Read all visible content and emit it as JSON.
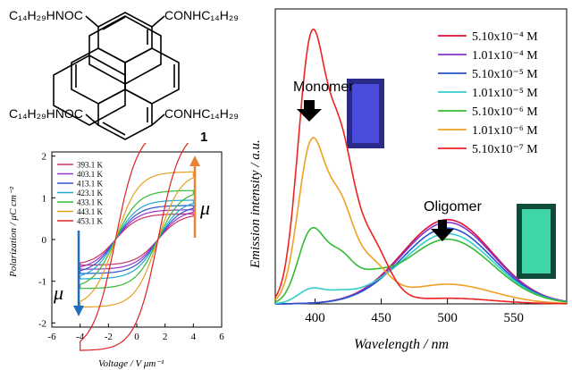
{
  "structure": {
    "top_left": "C₁₄H₂₉HNOC",
    "top_right": "CONHC₁₄H₂₉",
    "bottom_left": "C₁₄H₂₉HNOC",
    "bottom_right": "CONHC₁₄H₂₉",
    "compound_number": "1"
  },
  "chart_data": [
    {
      "type": "line",
      "title": "",
      "xlabel": "Voltage / V μm⁻¹",
      "ylabel": "Polarization / μC cm⁻²",
      "xlim": [
        -6,
        6
      ],
      "ylim": [
        -2.1,
        2.1
      ],
      "xticks": [
        "-6",
        "-4",
        "-2",
        "0",
        "2",
        "4",
        "6"
      ],
      "yticks": [
        "-2",
        "-1",
        "0",
        "1",
        "2"
      ],
      "legend_position": "top-left",
      "annotations": [
        "μ",
        "μ"
      ],
      "series": [
        {
          "name": "393.1 K",
          "color": "#cc3366",
          "Pmax": 0.75,
          "Pr": 0.05,
          "Vc": 1.5
        },
        {
          "name": "403.1 K",
          "color": "#9933cc",
          "Pmax": 0.85,
          "Pr": 0.1,
          "Vc": 1.5
        },
        {
          "name": "413.1 K",
          "color": "#3355cc",
          "Pmax": 0.95,
          "Pr": 0.15,
          "Vc": 1.5
        },
        {
          "name": "423.1 K",
          "color": "#22aacc",
          "Pmax": 1.05,
          "Pr": 0.25,
          "Vc": 1.5
        },
        {
          "name": "433.1 K",
          "color": "#33bb33",
          "Pmax": 1.2,
          "Pr": 0.45,
          "Vc": 1.5
        },
        {
          "name": "443.1 K",
          "color": "#e6a020",
          "Pmax": 1.4,
          "Pr": 0.9,
          "Vc": 1.5
        },
        {
          "name": "453.1 K",
          "color": "#dd2222",
          "Pmax": 1.8,
          "Pr": 1.7,
          "Vc": 1.5
        }
      ]
    },
    {
      "type": "line",
      "title": "",
      "xlabel": "Wavelength / nm",
      "ylabel": "Emission intensity / a.u.",
      "xlim": [
        370,
        590
      ],
      "ylim": [
        0,
        1.05
      ],
      "xticks": [
        "400",
        "450",
        "500",
        "550"
      ],
      "legend_position": "top-right",
      "annotations": [
        "Monomer",
        "Oligomer"
      ],
      "series": [
        {
          "name": "5.10x10⁻⁴ M",
          "color": "#dd1133",
          "m": 0.0,
          "o": 0.3
        },
        {
          "name": "1.01x10⁻⁴ M",
          "color": "#8833cc",
          "m": 0.0,
          "o": 0.29
        },
        {
          "name": "5.10x10⁻⁵ M",
          "color": "#2255cc",
          "m": 0.0,
          "o": 0.27
        },
        {
          "name": "1.01x10⁻⁵ M",
          "color": "#33cccc",
          "m": 0.05,
          "o": 0.25
        },
        {
          "name": "5.10x10⁻⁶ M",
          "color": "#33bb33",
          "m": 0.25,
          "o": 0.23
        },
        {
          "name": "1.01x10⁻⁶ M",
          "color": "#f0a020",
          "m": 0.55,
          "o": 0.07
        },
        {
          "name": "5.10x10⁻⁷ M",
          "color": "#ee2222",
          "m": 0.91,
          "o": 0.02
        }
      ]
    }
  ]
}
